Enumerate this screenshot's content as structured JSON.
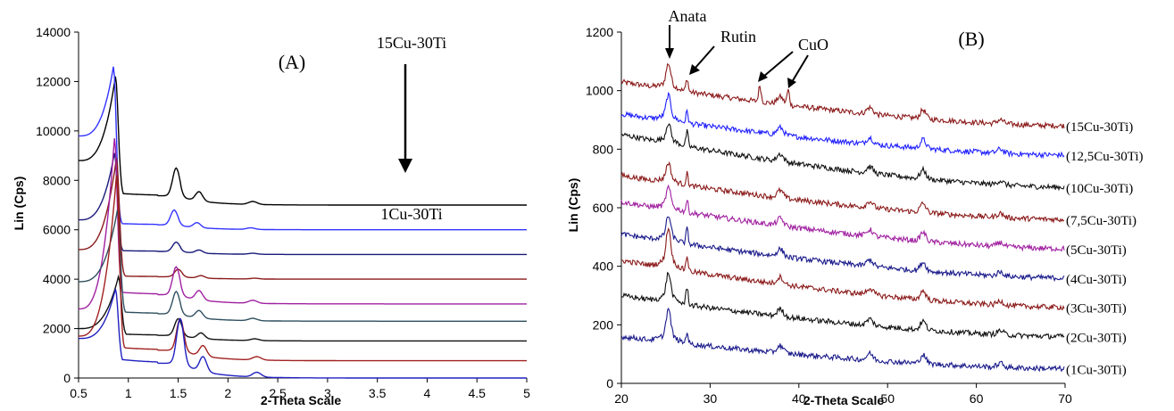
{
  "chart_data": [
    {
      "type": "line",
      "panel_label": "(A)",
      "xlabel": "2-Theta Scale",
      "ylabel": "Lin (Cps)",
      "xlim": [
        0.5,
        5
      ],
      "ylim": [
        0,
        14000
      ],
      "x_ticks": [
        "0.5",
        "1",
        "1.5",
        "2",
        "2.5",
        "3",
        "3.5",
        "4",
        "4.5",
        "5"
      ],
      "y_ticks": [
        "0",
        "2000",
        "4000",
        "6000",
        "8000",
        "10000",
        "12000",
        "14000"
      ],
      "annotations": {
        "top": "15Cu-30Ti",
        "bottom": "1Cu-30Ti"
      },
      "series": [
        {
          "color": "#000000",
          "baseline": 7000,
          "x0": 8800,
          "peak_x": 0.87,
          "peak_y": 12200,
          "p2_y": 8500,
          "p2_x": 1.48
        },
        {
          "color": "#3333ff",
          "baseline": 6000,
          "x0": 9800,
          "peak_x": 0.85,
          "peak_y": 12600,
          "p2_y": 6800,
          "p2_x": 1.46
        },
        {
          "color": "#1a1a7a",
          "baseline": 5000,
          "x0": 6400,
          "peak_x": 0.86,
          "peak_y": 9100,
          "p2_y": 5500,
          "p2_x": 1.48
        },
        {
          "color": "#8b1a1a",
          "baseline": 4000,
          "x0": 5200,
          "peak_x": 0.88,
          "peak_y": 8900,
          "p2_y": 4400,
          "p2_x": 1.5
        },
        {
          "color": "#a020a0",
          "baseline": 3000,
          "x0": 2800,
          "peak_x": 0.86,
          "peak_y": 9700,
          "p2_y": 4500,
          "p2_x": 1.48
        },
        {
          "color": "#2f4f5f",
          "baseline": 2300,
          "x0": 3900,
          "peak_x": 0.89,
          "peak_y": 6800,
          "p2_y": 3500,
          "p2_x": 1.48
        },
        {
          "color": "#111111",
          "baseline": 1500,
          "x0": 2000,
          "peak_x": 0.9,
          "peak_y": 4100,
          "p2_y": 2400,
          "p2_x": 1.5
        },
        {
          "color": "#a02020",
          "baseline": 700,
          "x0": 1700,
          "peak_x": 0.88,
          "peak_y": 8200,
          "p2_y": 2400,
          "p2_x": 1.52
        },
        {
          "color": "#2020c0",
          "baseline": 0,
          "x0": 1600,
          "peak_x": 0.87,
          "peak_y": 3600,
          "p2_y": 2400,
          "p2_x": 1.52
        }
      ]
    },
    {
      "type": "line",
      "panel_label": "(B)",
      "xlabel": "2-Theta Scale",
      "ylabel": "Lin (Cps)",
      "xlim": [
        20,
        70
      ],
      "ylim": [
        0,
        1200
      ],
      "x_ticks": [
        "20",
        "30",
        "40",
        "50",
        "60",
        "70"
      ],
      "y_ticks": [
        "0",
        "200",
        "400",
        "600",
        "800",
        "1000",
        "1200"
      ],
      "annotations": {
        "anatase": "Anata",
        "rutile": "Rutin",
        "cuo": "CuO"
      },
      "series": [
        {
          "name": "(15Cu-30Ti)",
          "color": "#8b1a1a",
          "start": 1030,
          "end": 880,
          "anatase": 70,
          "rutile": 45,
          "cuo": true
        },
        {
          "name": "(12,5Cu-30Ti)",
          "color": "#2020ff",
          "start": 920,
          "end": 780,
          "anatase": 70,
          "rutile": 40,
          "cuo": false
        },
        {
          "name": "(10Cu-30Ti)",
          "color": "#111111",
          "start": 850,
          "end": 670,
          "anatase": 55,
          "rutile": 50,
          "cuo": false
        },
        {
          "name": "(7,5Cu-30Ti)",
          "color": "#8b1a1a",
          "start": 710,
          "end": 560,
          "anatase": 55,
          "rutile": 40,
          "cuo": false
        },
        {
          "name": "(5Cu-30Ti)",
          "color": "#a020a0",
          "start": 620,
          "end": 460,
          "anatase": 60,
          "rutile": 40,
          "cuo": false
        },
        {
          "name": "(4Cu-30Ti)",
          "color": "#1a1a8b",
          "start": 510,
          "end": 360,
          "anatase": 70,
          "rutile": 50,
          "cuo": false
        },
        {
          "name": "(3Cu-30Ti)",
          "color": "#8b1a1a",
          "start": 420,
          "end": 260,
          "anatase": 110,
          "rutile": 50,
          "cuo": false
        },
        {
          "name": "(2Cu-30Ti)",
          "color": "#111111",
          "start": 300,
          "end": 160,
          "anatase": 80,
          "rutile": 60,
          "cuo": false
        },
        {
          "name": "(1Cu-30Ti)",
          "color": "#1a1a8b",
          "start": 160,
          "end": 50,
          "anatase": 90,
          "rutile": 40,
          "cuo": false
        }
      ]
    }
  ]
}
